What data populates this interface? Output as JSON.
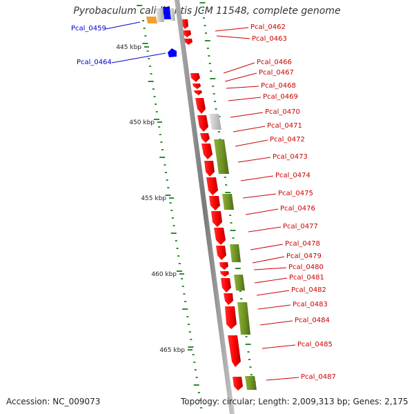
{
  "title": "Pyrobaculum calidifontis JCM 11548, complete genome",
  "footer": {
    "accession": "Accession: NC_009073",
    "topology": "Topology: circular; Length: 2,009,313 bp; Genes: 2,175"
  },
  "kbp_ticks": [
    "445 kbp",
    "450 kbp",
    "455 kbp",
    "460 kbp",
    "465 kbp"
  ],
  "colors": {
    "cds_forward": "#ff0000",
    "feature_olive": "#6b8e23",
    "gray_feature": "#c8c8c8",
    "blue_feature": "#0000ff",
    "orange_feature": "#f0a030",
    "label_red": "#cc0000",
    "label_blue": "#0000cc",
    "tick_green": "#2e8b2e"
  },
  "gene_labels": [
    {
      "name": "Pcal_0459",
      "color": "blue"
    },
    {
      "name": "Pcal_0464",
      "color": "blue"
    },
    {
      "name": "Pcal_0462",
      "color": "red"
    },
    {
      "name": "Pcal_0463",
      "color": "red"
    },
    {
      "name": "Pcal_0466",
      "color": "red"
    },
    {
      "name": "Pcal_0467",
      "color": "red"
    },
    {
      "name": "Pcal_0468",
      "color": "red"
    },
    {
      "name": "Pcal_0469",
      "color": "red"
    },
    {
      "name": "Pcal_0470",
      "color": "red"
    },
    {
      "name": "Pcal_0471",
      "color": "red"
    },
    {
      "name": "Pcal_0472",
      "color": "red"
    },
    {
      "name": "Pcal_0473",
      "color": "red"
    },
    {
      "name": "Pcal_0474",
      "color": "red"
    },
    {
      "name": "Pcal_0475",
      "color": "red"
    },
    {
      "name": "Pcal_0476",
      "color": "red"
    },
    {
      "name": "Pcal_0477",
      "color": "red"
    },
    {
      "name": "Pcal_0478",
      "color": "red"
    },
    {
      "name": "Pcal_0479",
      "color": "red"
    },
    {
      "name": "Pcal_0480",
      "color": "red"
    },
    {
      "name": "Pcal_0481",
      "color": "red"
    },
    {
      "name": "Pcal_0482",
      "color": "red"
    },
    {
      "name": "Pcal_0483",
      "color": "red"
    },
    {
      "name": "Pcal_0484",
      "color": "red"
    },
    {
      "name": "Pcal_0485",
      "color": "red"
    },
    {
      "name": "Pcal_0487",
      "color": "red"
    }
  ]
}
